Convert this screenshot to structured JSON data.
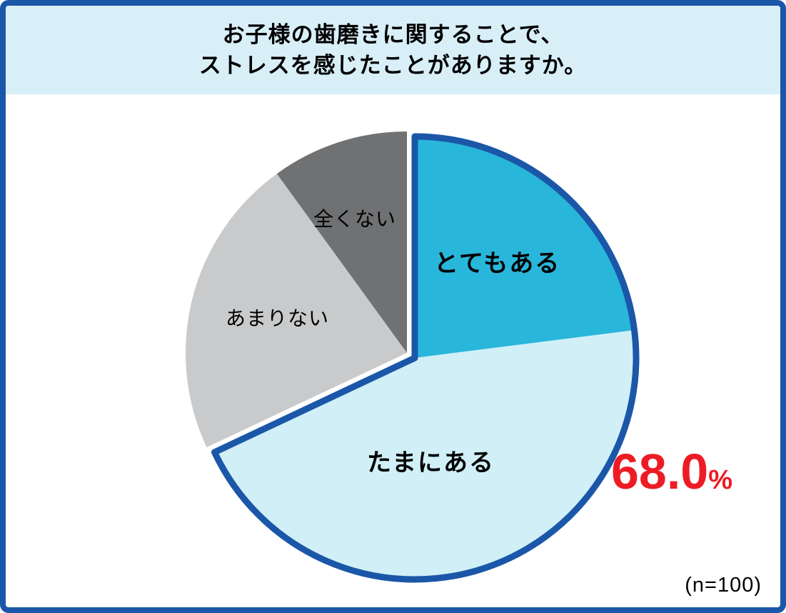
{
  "frame": {
    "border_color": "#1B57A8",
    "header_bg": "#D8EFF8"
  },
  "title": {
    "line1": "お子様の歯磨きに関することで、",
    "line2": "ストレスを感じたことがありますか。"
  },
  "chart_data": {
    "type": "pie",
    "title": "お子様の歯磨きに関することで、ストレスを感じたことがありますか。",
    "direction": "clockwise",
    "start_angle_deg": 0,
    "segments": [
      {
        "label": "とてもある",
        "value": 23.0,
        "color": "#29B6DB",
        "highlighted": true
      },
      {
        "label": "たまにある",
        "value": 45.0,
        "color": "#D0EFF7",
        "highlighted": true
      },
      {
        "label": "あまりない",
        "value": 22.0,
        "color": "#C9CACB",
        "highlighted": false
      },
      {
        "label": "全くない",
        "value": 10.0,
        "color": "#707173",
        "highlighted": false
      }
    ],
    "highlight_total": {
      "value": "68.0",
      "unit": "%",
      "color": "#ED1C24",
      "includes": [
        "とてもある",
        "たまにある"
      ]
    },
    "outline_color": "#1B57A8",
    "legend": "none",
    "n_label": "(n=100)"
  },
  "footnote": "(n=100)"
}
